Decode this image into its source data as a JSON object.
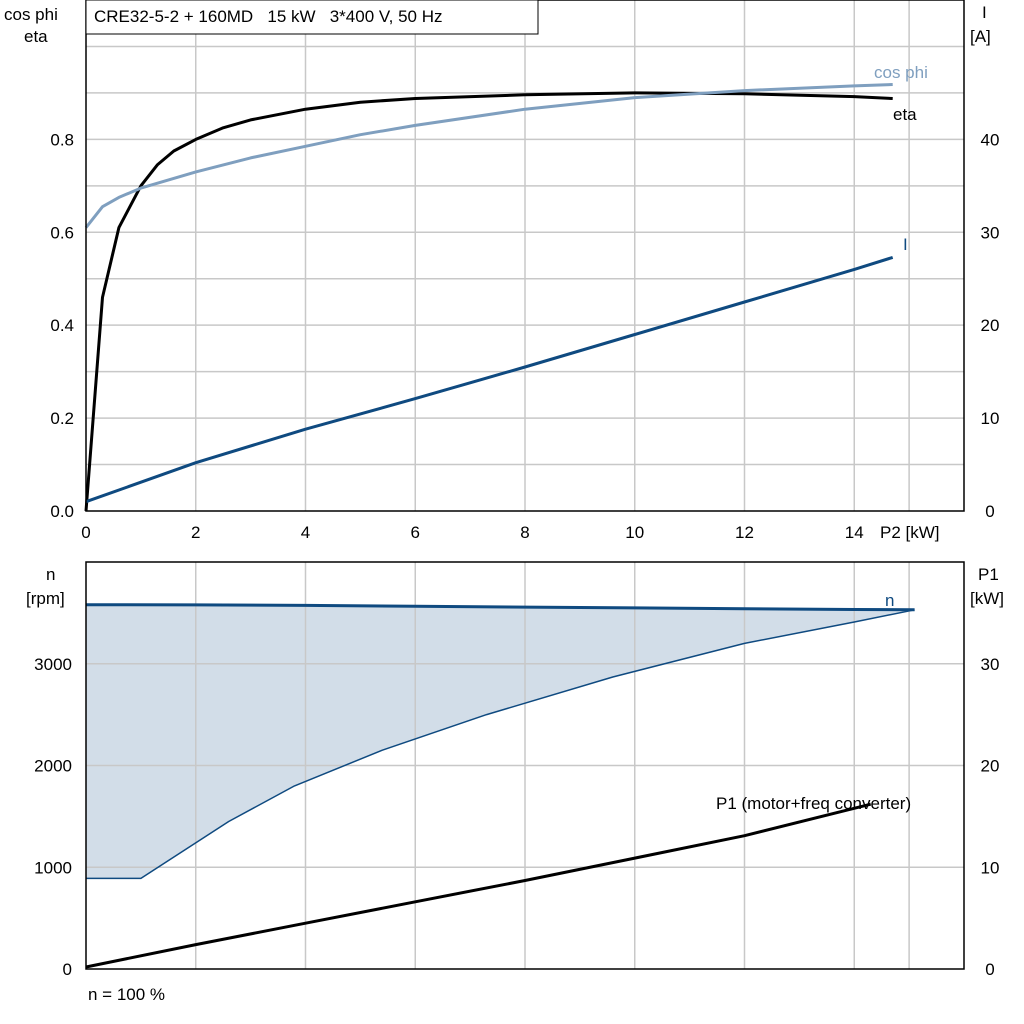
{
  "header": {
    "title": "CRE32-5-2 + 160MD   15 kW   3*400 V, 50 Hz"
  },
  "footer": {
    "note": "n = 100 %"
  },
  "colors": {
    "eta": "#000000",
    "cos_phi": "#7f9fbf",
    "current": "#0f4a80",
    "speed": "#0f4a80",
    "speed_fill": "#d2dde8",
    "p1": "#000000",
    "grid": "#c8c8c8"
  },
  "chart_data": [
    {
      "type": "line",
      "xlabel": "P2 [kW]",
      "xlim": [
        0,
        16
      ],
      "x_ticks": [
        "0",
        "2",
        "4",
        "6",
        "8",
        "10",
        "12",
        "14"
      ],
      "y_left": {
        "label_line1": "cos phi",
        "label_line2": "eta",
        "lim": [
          0,
          1.1
        ],
        "ticks": [
          "0.0",
          "0.2",
          "0.4",
          "0.6",
          "0.8"
        ]
      },
      "y_right": {
        "label_line1": "I",
        "label_line2": "[A]",
        "lim": [
          0,
          55
        ],
        "ticks": [
          "0",
          "10",
          "20",
          "30",
          "40"
        ]
      },
      "grid": true,
      "series": [
        {
          "name": "eta",
          "axis": "left",
          "color": "#000000",
          "x": [
            0,
            0.3,
            0.6,
            1.0,
            1.3,
            1.6,
            2,
            2.5,
            3,
            4,
            5,
            6,
            8,
            10,
            12,
            14,
            14.7
          ],
          "y": [
            0,
            0.46,
            0.61,
            0.7,
            0.745,
            0.775,
            0.8,
            0.825,
            0.842,
            0.865,
            0.88,
            0.888,
            0.896,
            0.9,
            0.898,
            0.892,
            0.888
          ]
        },
        {
          "name": "cos phi",
          "axis": "left",
          "color": "#7f9fbf",
          "x": [
            0,
            0.3,
            0.6,
            1,
            2,
            3,
            4,
            5,
            6,
            8,
            10,
            12,
            14,
            14.7
          ],
          "y": [
            0.61,
            0.655,
            0.675,
            0.695,
            0.73,
            0.76,
            0.785,
            0.81,
            0.83,
            0.865,
            0.89,
            0.905,
            0.915,
            0.918
          ]
        },
        {
          "name": "I",
          "axis": "right",
          "color": "#0f4a80",
          "x": [
            0,
            2,
            4,
            6,
            8,
            10,
            12,
            14,
            14.7
          ],
          "y": [
            1.0,
            5.2,
            8.8,
            12.1,
            15.5,
            19.0,
            22.5,
            26.0,
            27.3
          ]
        }
      ]
    },
    {
      "type": "line",
      "xlim": [
        0,
        16
      ],
      "y_left": {
        "label_line1": "n",
        "label_line2": "[rpm]",
        "lim": [
          0,
          4000
        ],
        "ticks": [
          "0",
          "1000",
          "2000",
          "3000"
        ]
      },
      "y_right": {
        "label_line1": "P1",
        "label_line2": "[kW]",
        "lim": [
          0,
          40
        ],
        "ticks": [
          "0",
          "10",
          "20",
          "30"
        ]
      },
      "grid": true,
      "series": [
        {
          "name": "n",
          "axis": "left",
          "color": "#0f4a80",
          "x": [
            0,
            2,
            4,
            6,
            8,
            10,
            12,
            14,
            15.1
          ],
          "y": [
            3580,
            3578,
            3573,
            3565,
            3557,
            3549,
            3541,
            3533,
            3530
          ]
        },
        {
          "name": "",
          "axis": "left",
          "color": "#0f4a80",
          "role": "operating-range-lower-bound",
          "x": [
            0,
            1.0,
            2.6,
            3.8,
            5.4,
            7.3,
            9.6,
            12.0,
            14.0,
            15.1
          ],
          "y": [
            890,
            890,
            1450,
            1800,
            2150,
            2500,
            2870,
            3200,
            3410,
            3530
          ]
        },
        {
          "name": "P1 (motor+freq converter)",
          "axis": "right",
          "color": "#000000",
          "x": [
            0,
            2,
            4,
            6,
            8,
            10,
            12,
            14.3
          ],
          "y": [
            0.2,
            2.4,
            4.5,
            6.6,
            8.7,
            10.9,
            13.1,
            16.2
          ]
        }
      ]
    }
  ]
}
